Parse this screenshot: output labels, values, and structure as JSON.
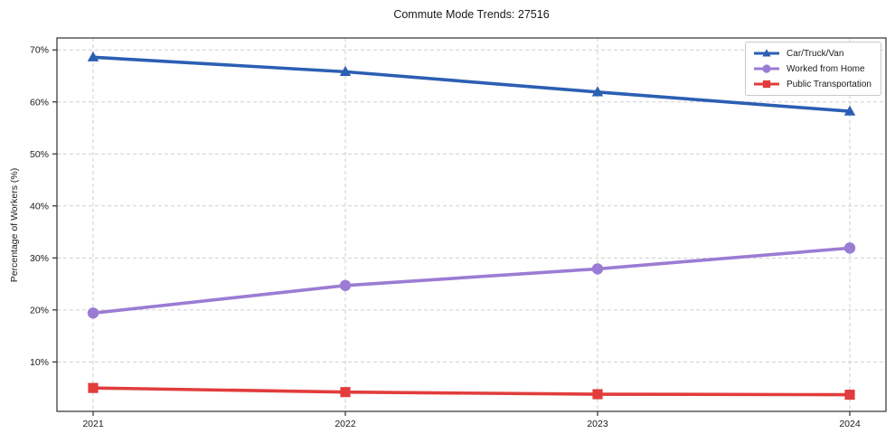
{
  "figure": {
    "background": "#ffffff",
    "text_color": "#1a1a1a",
    "grid_color": "#cfcfcf",
    "spine_color": "#2e2e2e"
  },
  "chart_data": {
    "type": "line",
    "title": "Commute Mode Trends: 27516",
    "xlabel": "",
    "ylabel": "Percentage of Workers (%)",
    "categories": [
      "2021",
      "2022",
      "2023",
      "2024"
    ],
    "series": [
      {
        "name": "Car/Truck/Van",
        "color": "#2b5fb3",
        "marker": "triangle",
        "values": [
          68.6,
          65.8,
          61.9,
          58.2
        ]
      },
      {
        "name": "Worked from Home",
        "color": "#9b7cd4",
        "marker": "circle",
        "values": [
          19.4,
          24.7,
          27.9,
          31.9
        ]
      },
      {
        "name": "Public Transportation",
        "color": "#e23c3c",
        "marker": "square",
        "values": [
          5.0,
          4.2,
          3.8,
          3.7
        ]
      }
    ],
    "yticks": [
      10,
      20,
      30,
      40,
      50,
      60,
      70
    ],
    "ytick_format": "{v}%",
    "ylim": [
      0.5,
      72.3
    ],
    "grid": true,
    "grid_style": "dashed",
    "legend_position": "upper right"
  }
}
